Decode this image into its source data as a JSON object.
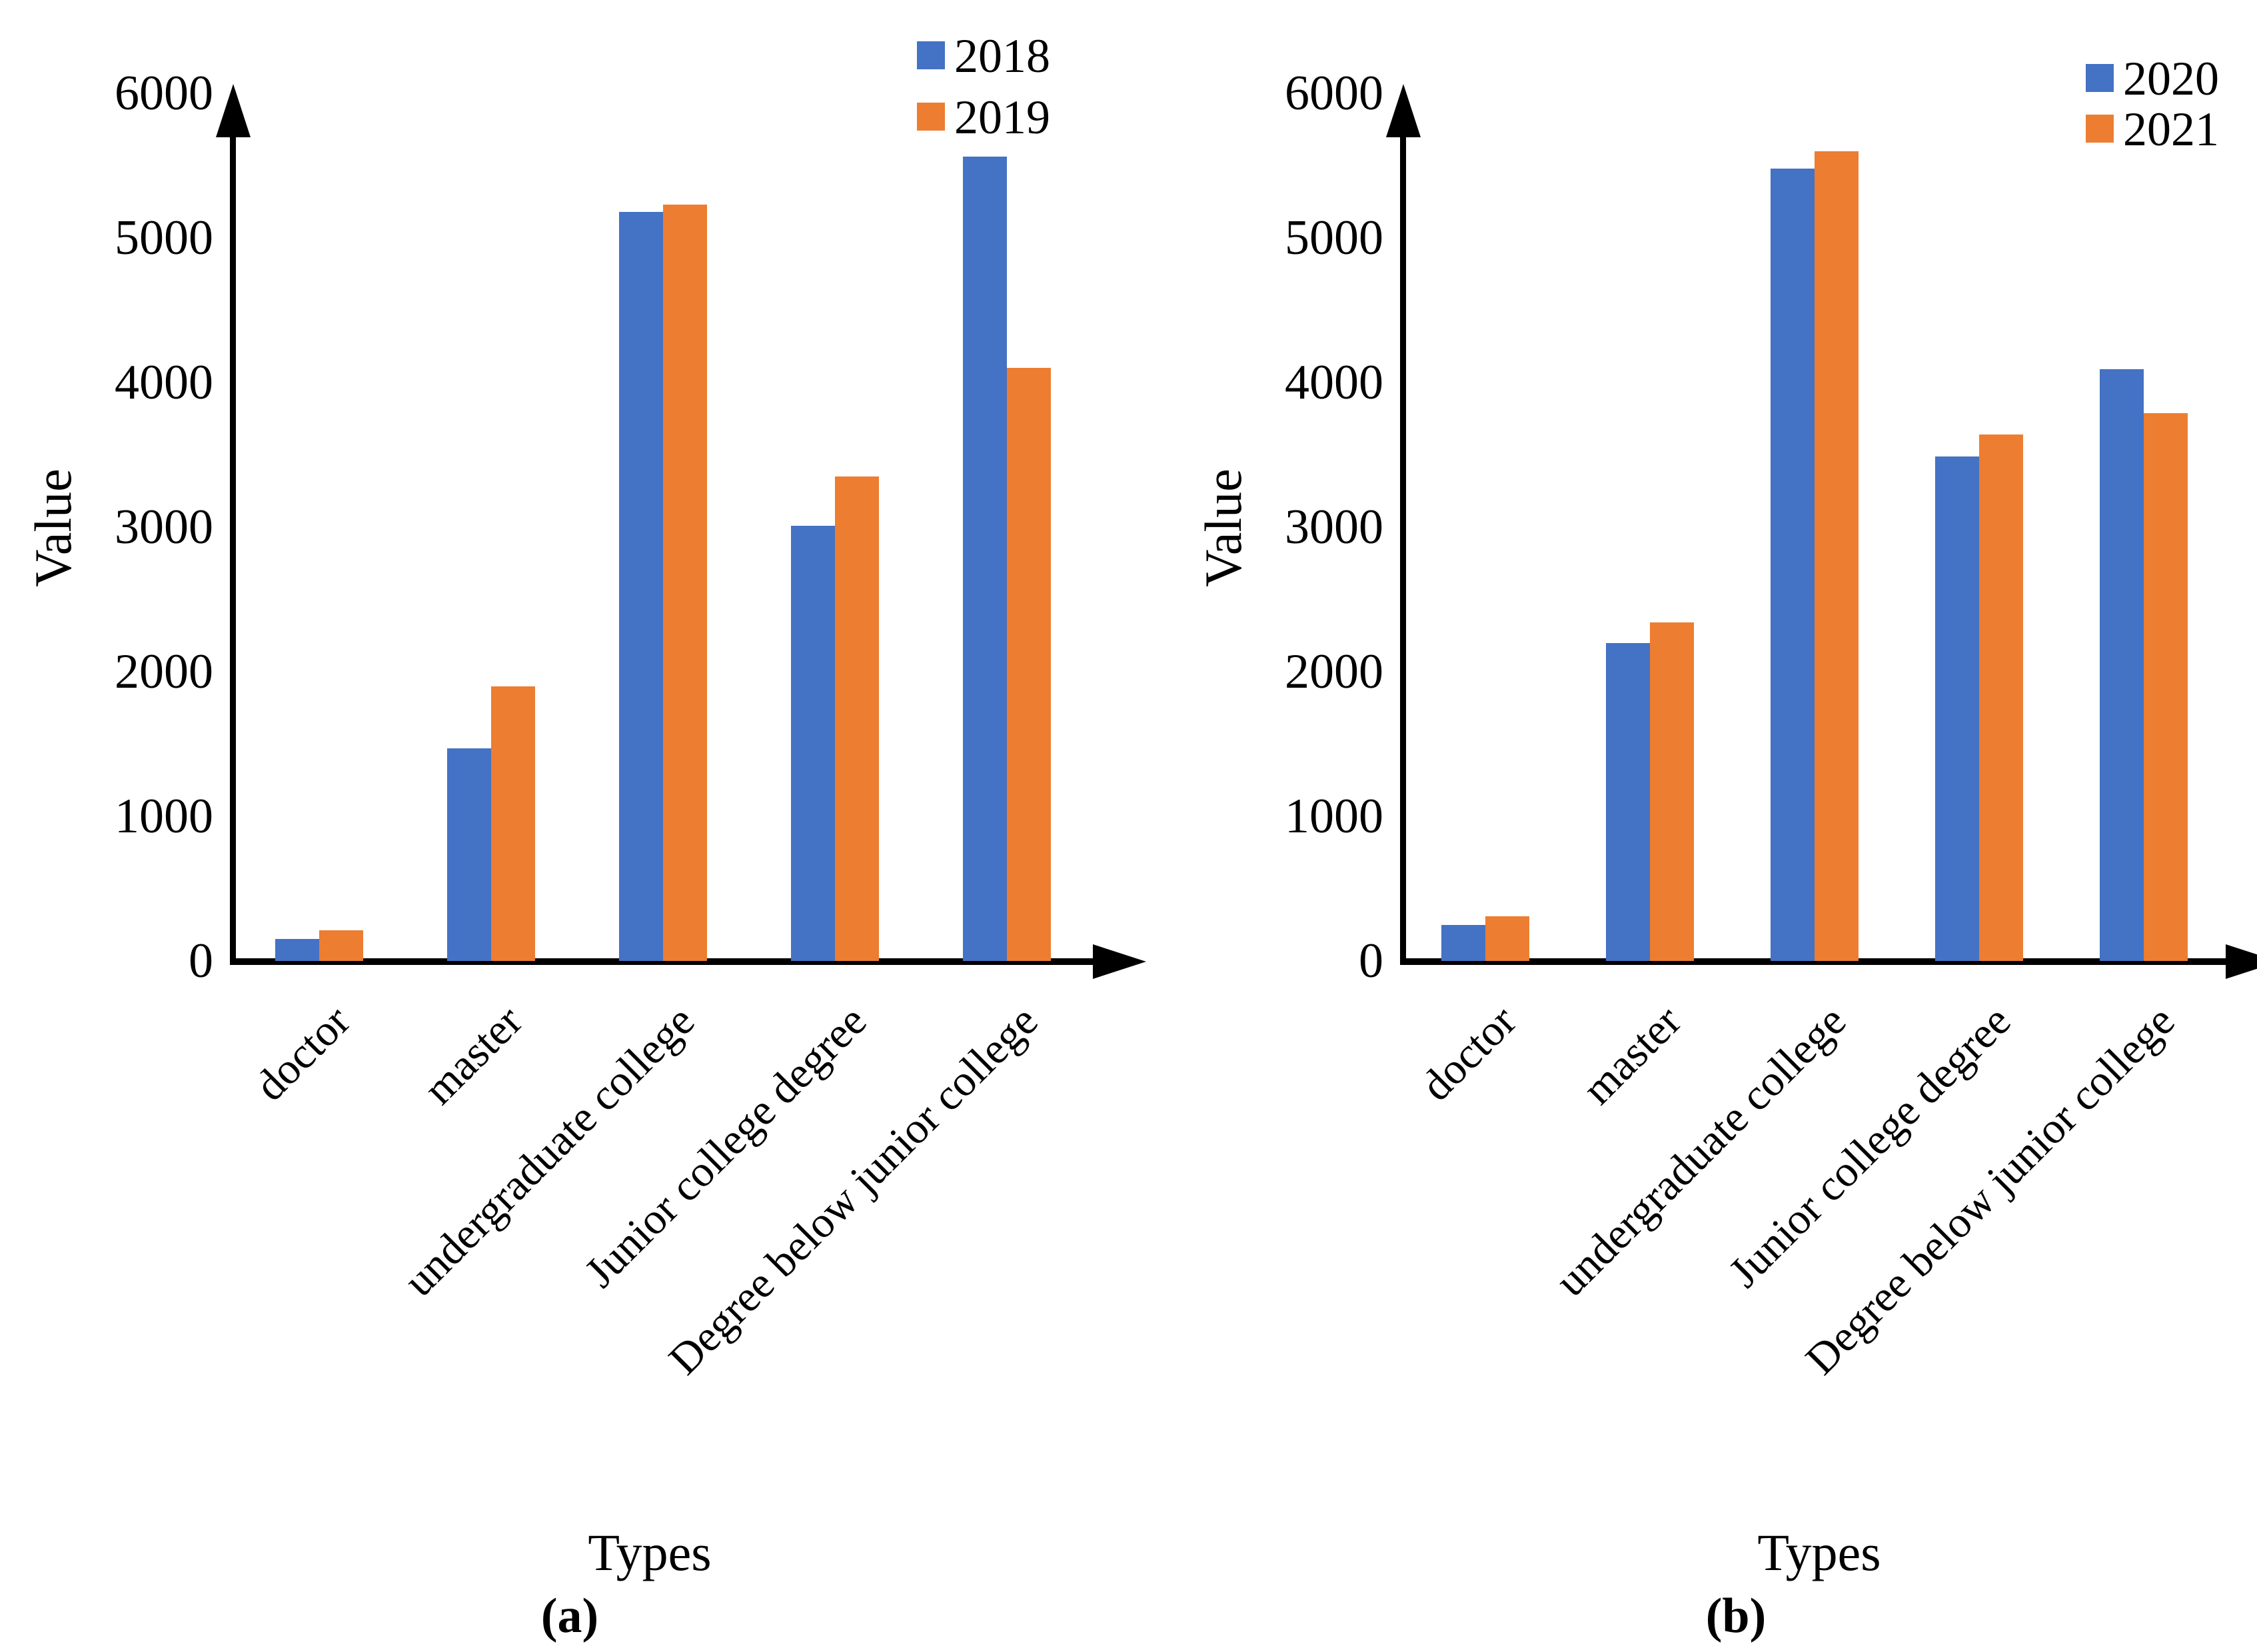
{
  "colors": {
    "series_blue": "#4472C4",
    "series_orange": "#ED7D31",
    "axis": "#000000",
    "background": "#FFFFFF"
  },
  "chart_data": [
    {
      "type": "bar",
      "panel_label": "(a)",
      "xlabel": "Types",
      "ylabel": "Value",
      "ylim": [
        0,
        6000
      ],
      "ytick_step": 1000,
      "yticks": [
        "0",
        "1000",
        "2000",
        "3000",
        "4000",
        "5000",
        "6000"
      ],
      "grid": false,
      "legend_position": "top-right",
      "categories": [
        "doctor",
        "master",
        "undergraduate college",
        "Junior college degree",
        "Degree below junior college"
      ],
      "series": [
        {
          "name": "2018",
          "color": "#4472C4",
          "values": [
            150,
            1470,
            5180,
            3010,
            5560
          ]
        },
        {
          "name": "2019",
          "color": "#ED7D31",
          "values": [
            210,
            1900,
            5230,
            3350,
            4100
          ]
        }
      ]
    },
    {
      "type": "bar",
      "panel_label": "(b)",
      "xlabel": "Types",
      "ylabel": "Value",
      "ylim": [
        0,
        6000
      ],
      "ytick_step": 1000,
      "yticks": [
        "0",
        "1000",
        "2000",
        "3000",
        "4000",
        "5000",
        "6000"
      ],
      "grid": false,
      "legend_position": "top-right",
      "categories": [
        "doctor",
        "master",
        "undergraduate college",
        "Junior college degree",
        "Degree below junior college"
      ],
      "series": [
        {
          "name": "2020",
          "color": "#4472C4",
          "values": [
            250,
            2200,
            5480,
            3490,
            4090
          ]
        },
        {
          "name": "2021",
          "color": "#ED7D31",
          "values": [
            310,
            2340,
            5600,
            3640,
            3790
          ]
        }
      ]
    }
  ]
}
